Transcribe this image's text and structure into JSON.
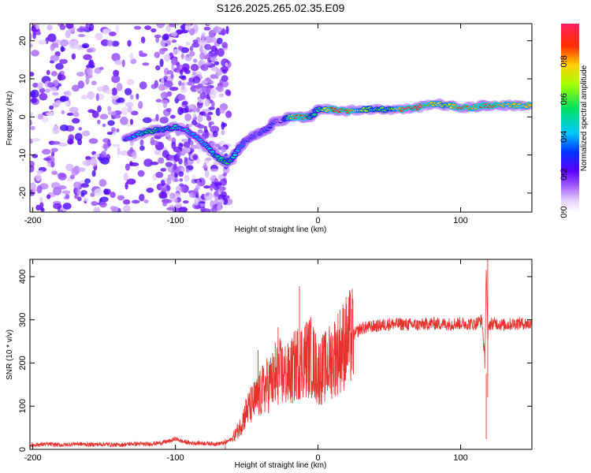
{
  "title": "S126.2025.265.02.35.E09",
  "chart_data": [
    {
      "type": "heatmap",
      "name": "spectrogram",
      "xlabel": "Height of straight line (km)",
      "ylabel": "Frequency (Hz)",
      "xlim": [
        -202,
        150
      ],
      "ylim": [
        -25,
        24.5
      ],
      "xticks": [
        -200,
        -100,
        0,
        100
      ],
      "yticks": [
        -20,
        -10,
        0,
        10,
        20
      ],
      "colorbar": {
        "label": "Normalized spectral amplitude",
        "range": [
          0,
          1
        ],
        "ticks": [
          0.0,
          0.2,
          0.4,
          0.6,
          0.8
        ]
      },
      "signal_trace": {
        "x": [
          -135,
          -125,
          -115,
          -108,
          -100,
          -90,
          -80,
          -72,
          -65,
          -60,
          -55,
          -50,
          -45,
          -40,
          -35,
          -30,
          -25,
          -20,
          -15,
          -10,
          -5,
          0,
          10,
          20,
          30,
          40,
          50,
          60,
          70,
          80,
          90,
          100,
          110,
          115,
          120,
          130,
          140,
          150
        ],
        "y": [
          -6,
          -4.5,
          -3.5,
          -3.5,
          -2.5,
          -4,
          -7,
          -10,
          -12,
          -11,
          -8,
          -6,
          -5,
          -4,
          -3,
          -1,
          -1,
          0,
          0,
          0,
          0,
          2,
          2,
          1.5,
          2,
          2,
          2,
          2,
          2.5,
          3.5,
          3,
          2.5,
          2.5,
          3,
          3,
          3,
          3,
          3
        ],
        "amplitude": [
          0.3,
          0.5,
          0.6,
          0.5,
          0.5,
          0.4,
          0.4,
          0.5,
          0.6,
          0.5,
          0.4,
          0.3,
          0.3,
          0.3,
          0.3,
          0.3,
          0.2,
          0.7,
          0.9,
          0.9,
          0.6,
          0.5,
          0.9,
          0.9,
          0.7,
          0.6,
          0.6,
          0.9,
          0.9,
          0.8,
          0.7,
          0.9,
          0.8,
          0.9,
          0.9,
          0.8,
          0.8,
          0.8
        ]
      }
    },
    {
      "type": "line",
      "name": "snr",
      "xlabel": "Height of straight line (km)",
      "ylabel": "SNR (10 * v/v)",
      "xlim": [
        -202,
        150
      ],
      "ylim": [
        0,
        440
      ],
      "xticks": [
        -200,
        -100,
        0,
        100
      ],
      "yticks": [
        0,
        100,
        200,
        300,
        400
      ],
      "series": [
        {
          "name": "SNR",
          "color": "#e8322d",
          "x": [
            -202,
            -190,
            -180,
            -170,
            -160,
            -150,
            -140,
            -130,
            -120,
            -110,
            -103,
            -100,
            -95,
            -90,
            -80,
            -70,
            -65,
            -60,
            -55,
            -50,
            -45,
            -42,
            -40,
            -38,
            -35,
            -32,
            -30,
            -28,
            -25,
            -20,
            -15,
            -10,
            -5,
            0,
            5,
            10,
            15,
            20,
            25,
            30,
            40,
            50,
            60,
            70,
            80,
            90,
            100,
            110,
            115,
            117,
            118,
            119,
            120,
            125,
            130,
            140,
            150
          ],
          "y": [
            10,
            12,
            10,
            13,
            11,
            12,
            10,
            13,
            12,
            15,
            20,
            25,
            18,
            15,
            14,
            13,
            15,
            25,
            50,
            90,
            110,
            120,
            130,
            140,
            150,
            160,
            150,
            180,
            175,
            170,
            200,
            210,
            215,
            180,
            190,
            210,
            230,
            250,
            265,
            280,
            285,
            290,
            290,
            288,
            292,
            290,
            292,
            290,
            300,
            200,
            420,
            260,
            290,
            292,
            288,
            292,
            290
          ]
        }
      ],
      "spikes": [
        {
          "x": -65,
          "y": 0
        },
        {
          "x": -42,
          "y": 230
        },
        {
          "x": -30,
          "y": 248
        },
        {
          "x": -28,
          "y": 283
        },
        {
          "x": -13,
          "y": 378
        },
        {
          "x": 118,
          "y": 175
        },
        {
          "x": 119,
          "y": 440
        }
      ]
    }
  ]
}
